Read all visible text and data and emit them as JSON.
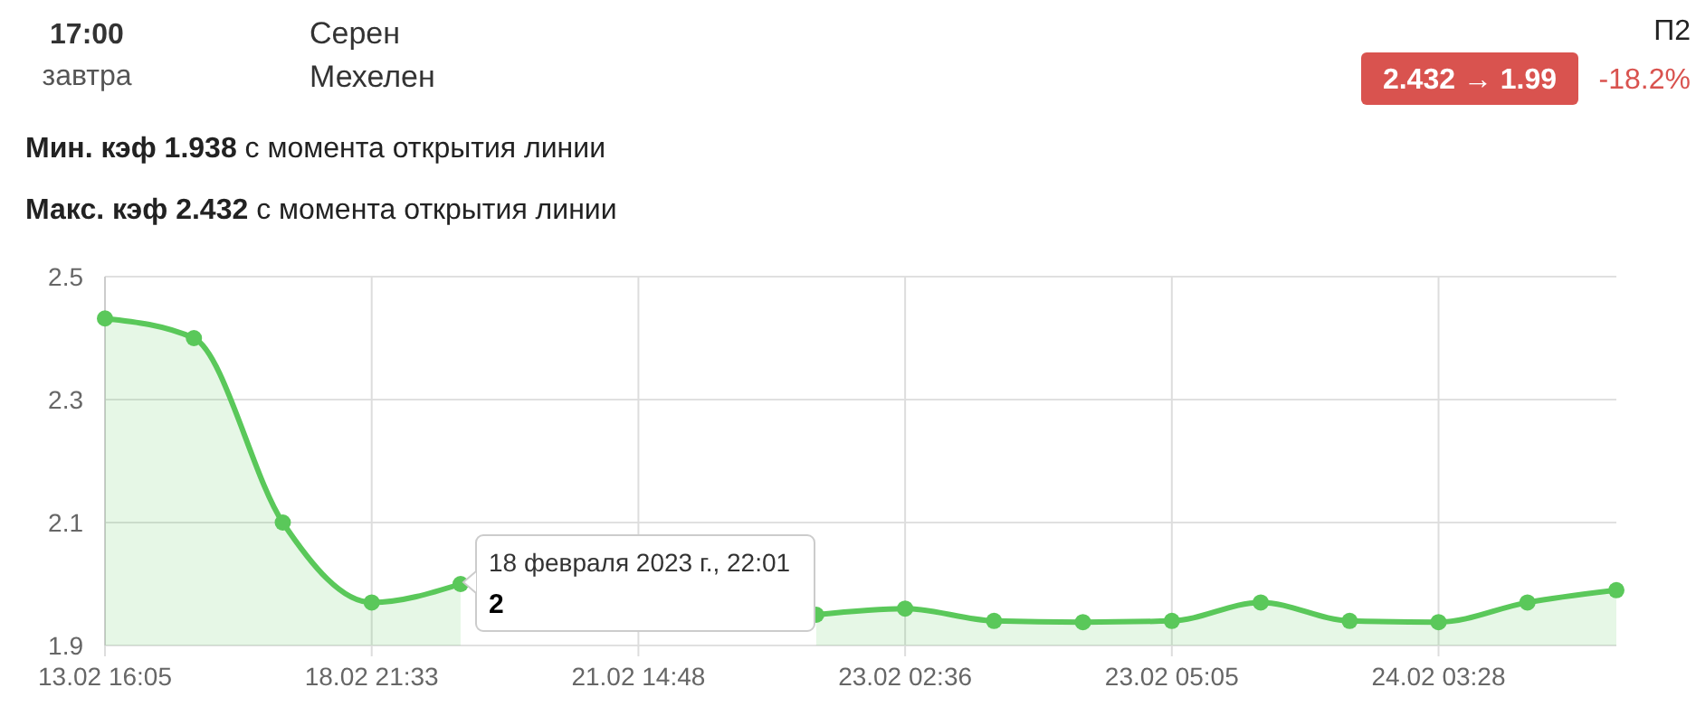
{
  "chart_data": {
    "type": "area",
    "annotations": [
      "17:00",
      "завтра",
      "Серен",
      "Мехелен",
      "П2",
      "2.432 → 1.99",
      "-18.2%",
      "Мин. кэф 1.938",
      "с момента открытия линии",
      "Макс. кэф 2.432",
      "с момента открытия линии",
      "18 февраля 2023 г., 22:01",
      "2"
    ],
    "categories": [
      "13.02 16:05",
      null,
      null,
      "18.02 21:33",
      null,
      null,
      "21.02 14:48",
      null,
      null,
      "23.02 02:36",
      null,
      null,
      "23.02 05:05",
      null,
      null,
      "24.02 03:28",
      null,
      null
    ],
    "series": [
      {
        "color": "#5ac85a",
        "values": [
          2.432,
          2.4,
          2.1,
          1.97,
          2,
          null,
          null,
          null,
          1.95,
          1.96,
          1.94,
          1.938,
          1.94,
          1.97,
          1.94,
          1.938,
          1.97,
          1.99
        ]
      }
    ],
    "ylim": [
      1.9,
      2.5
    ],
    "yticks": [
      1.9,
      2.1,
      2.3,
      2.5
    ],
    "grid": true,
    "marker": "circle",
    "line_style": "solid"
  }
}
